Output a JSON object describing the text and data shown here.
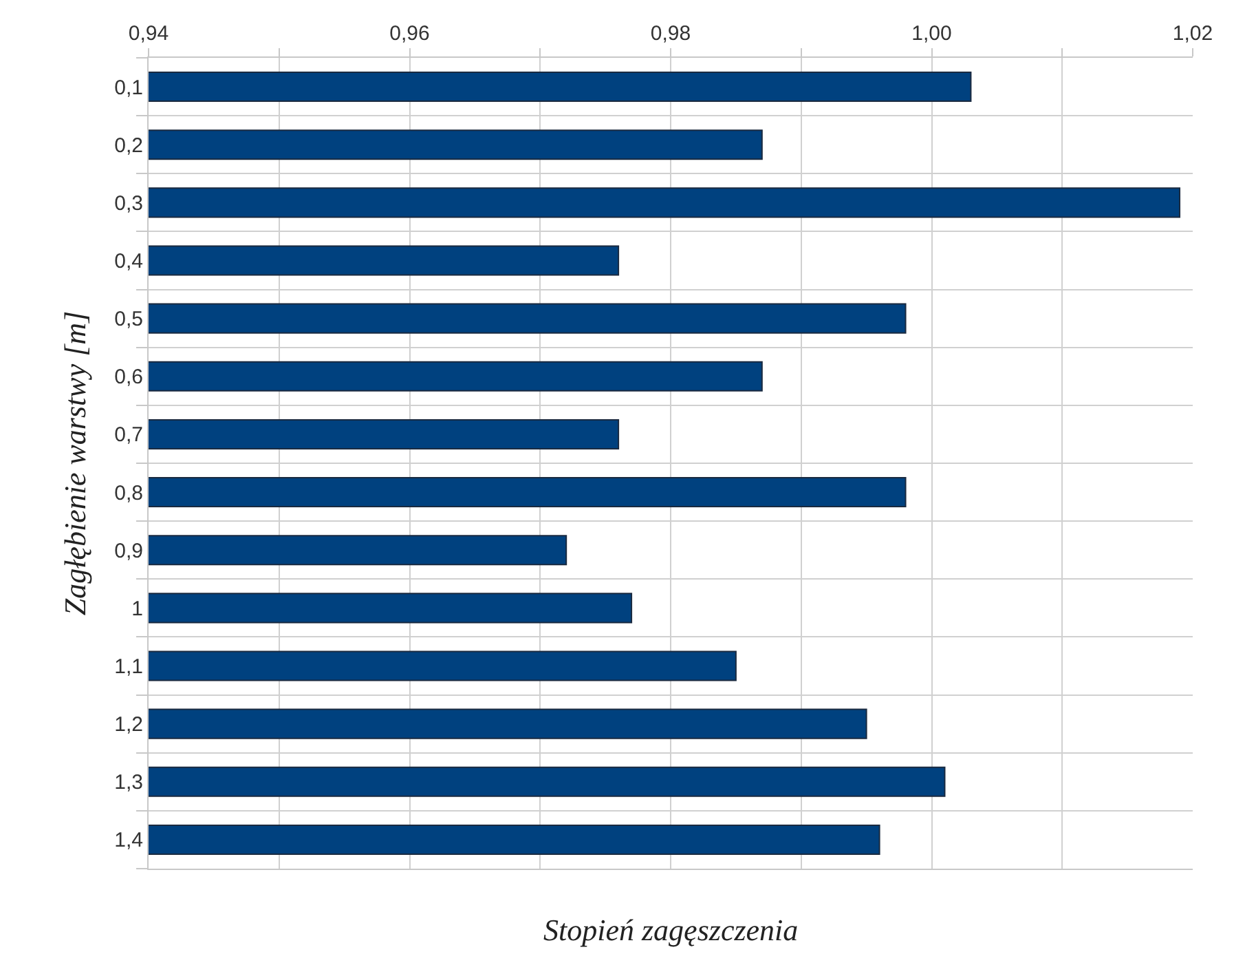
{
  "chart_data": {
    "type": "bar",
    "orientation": "horizontal",
    "xlabel": "Stopień zagęszczenia",
    "ylabel": "Zagłębienie warstwy [m]",
    "categories": [
      "0,1",
      "0,2",
      "0,3",
      "0,4",
      "0,5",
      "0,6",
      "0,7",
      "0,8",
      "0,9",
      "1",
      "1,1",
      "1,2",
      "1,3",
      "1,4"
    ],
    "series": [
      {
        "color": "#00417f",
        "values": [
          1.003,
          0.987,
          1.019,
          0.976,
          0.998,
          0.987,
          0.976,
          0.998,
          0.972,
          0.977,
          0.985,
          0.995,
          1.001,
          0.996
        ]
      }
    ],
    "xlim": [
      0.94,
      1.02
    ],
    "xticks": [
      {
        "value": 0.94,
        "label": "0,94"
      },
      {
        "value": 0.95,
        "label": null
      },
      {
        "value": 0.96,
        "label": "0,96"
      },
      {
        "value": 0.97,
        "label": null
      },
      {
        "value": 0.98,
        "label": "0,98"
      },
      {
        "value": 0.99,
        "label": null
      },
      {
        "value": 1.0,
        "label": "1,00"
      },
      {
        "value": 1.01,
        "label": null
      },
      {
        "value": 1.02,
        "label": "1,02"
      }
    ],
    "grid": true
  }
}
